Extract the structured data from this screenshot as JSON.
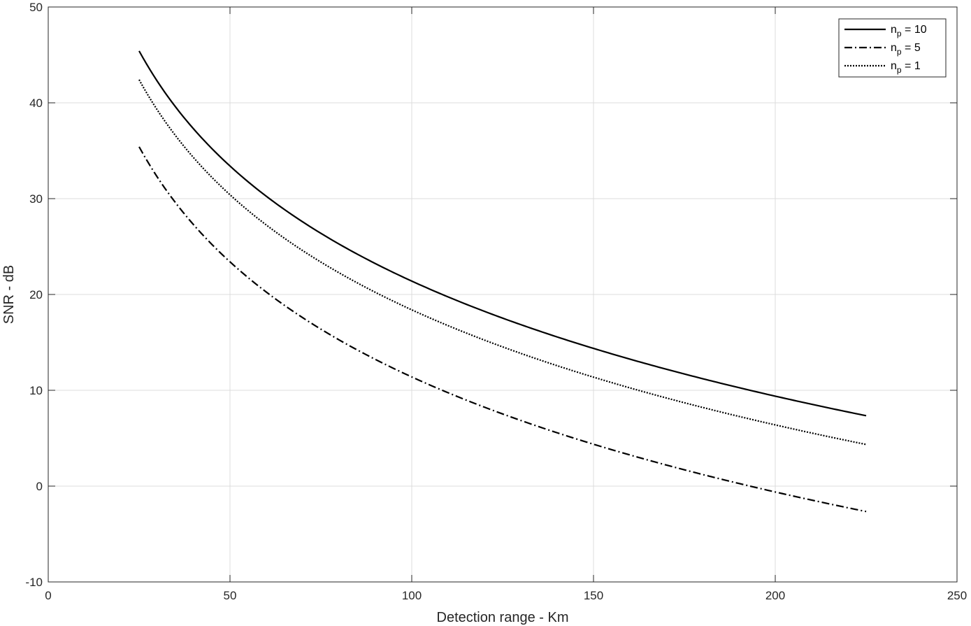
{
  "chart_data": {
    "type": "line",
    "xlabel": "Detection range - Km",
    "ylabel": "SNR - dB",
    "xlim": [
      0,
      250
    ],
    "ylim": [
      -10,
      50
    ],
    "xticks": [
      0,
      50,
      100,
      150,
      200,
      250
    ],
    "yticks": [
      -10,
      0,
      10,
      20,
      30,
      40,
      50
    ],
    "grid": true,
    "legend_position": "top-right",
    "x": [
      25,
      30,
      40,
      50,
      60,
      75,
      100,
      125,
      150,
      175,
      200,
      225
    ],
    "series": [
      {
        "name": "n_p = 10",
        "legend_main": "n",
        "legend_sub": "p",
        "legend_rest": " = 10",
        "style": "solid",
        "values": [
          45.4,
          42.2,
          37.3,
          33.4,
          30.3,
          26.4,
          21.4,
          17.5,
          14.4,
          11.7,
          9.4,
          7.3
        ]
      },
      {
        "name": "n_p = 5",
        "legend_main": "n",
        "legend_sub": "p",
        "legend_rest": " = 5",
        "style": "dashdot",
        "values": [
          35.4,
          32.2,
          27.3,
          23.4,
          20.3,
          16.4,
          11.4,
          7.5,
          4.4,
          1.7,
          -0.6,
          -2.7
        ]
      },
      {
        "name": "n_p = 1",
        "legend_main": "n",
        "legend_sub": "p",
        "legend_rest": " = 1",
        "style": "dotted",
        "values": [
          42.4,
          39.2,
          34.3,
          30.4,
          27.3,
          23.4,
          18.4,
          14.5,
          11.4,
          8.7,
          6.4,
          4.3
        ]
      }
    ]
  },
  "colors": {
    "line": "#000000",
    "grid": "#dcdcdc",
    "axis": "#262626",
    "background": "#ffffff"
  }
}
